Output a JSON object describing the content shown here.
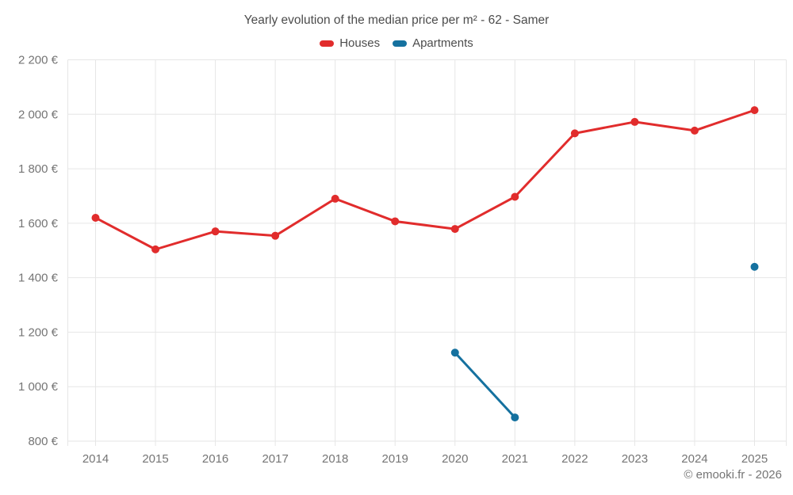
{
  "title": "Yearly evolution of the median price per m² - 62 - Samer",
  "footer": "© emooki.fr - 2026",
  "chart_data": {
    "type": "line",
    "categories": [
      2014,
      2015,
      2016,
      2017,
      2018,
      2019,
      2020,
      2021,
      2022,
      2023,
      2024,
      2025
    ],
    "series": [
      {
        "name": "Houses",
        "color": "#e12c2c",
        "values": [
          1620,
          1504,
          1570,
          1554,
          1690,
          1607,
          1579,
          1697,
          1930,
          1972,
          1940,
          2015
        ]
      },
      {
        "name": "Apartments",
        "color": "#15719f",
        "values": [
          null,
          null,
          null,
          null,
          null,
          null,
          1125,
          887,
          null,
          null,
          null,
          1440
        ]
      }
    ],
    "ylim": [
      800,
      2200
    ],
    "y_ticks": [
      800,
      1000,
      1200,
      1400,
      1600,
      1800,
      2000,
      2200
    ],
    "y_tick_labels": [
      "800 €",
      "1 000 €",
      "1 200 €",
      "1 400 €",
      "1 600 €",
      "1 800 €",
      "2 000 €",
      "2 200 €"
    ],
    "currency_suffix": "€",
    "grid": true,
    "legend_position": "top",
    "grid_color": "#e6e6e6",
    "tick_label_color": "#757575"
  }
}
